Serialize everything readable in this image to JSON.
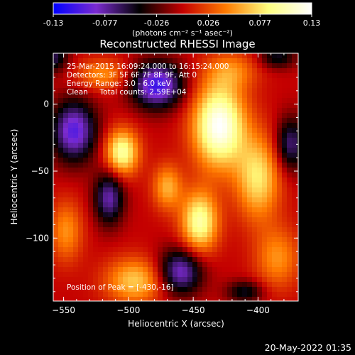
{
  "chart_data": {
    "type": "heatmap",
    "title": "Reconstructed RHESSI Image",
    "xlabel": "Heliocentric X (arcsec)",
    "ylabel": "Heliocentric Y (arcsec)",
    "xlim": [
      -558,
      -369
    ],
    "ylim": [
      -147,
      38
    ],
    "x_ticks": [
      -550,
      -500,
      -450,
      -400
    ],
    "y_ticks": [
      0,
      -50,
      -100
    ],
    "colorbar": {
      "min": -0.13,
      "max": 0.13,
      "ticks": [
        "-0.13",
        "-0.077",
        "-0.026",
        "0.026",
        "0.077",
        "0.13"
      ],
      "unit_label": "(photons cm⁻² s⁻¹ asec⁻²)",
      "colormap": [
        "#0000ff",
        "#7b2bd0",
        "#000000",
        "#c40000",
        "#ff7a00",
        "#ffff80",
        "#ffffff"
      ]
    },
    "annotations": [
      "25-Mar-2015 16:09:24.000 to 16:15:24.000",
      "Detectors: 3F 5F 6F 7F 8F 9F, Att 0",
      "Energy Range: 3.0 - 6.0 keV",
      "Clean     Total counts: 2.59E+04"
    ],
    "peak_label": "Position of Peak = [-430,-16]",
    "peak": {
      "x": -430,
      "y": -16,
      "value": 0.13
    },
    "blobs": [
      {
        "x": -430,
        "y": -16,
        "value": 0.13,
        "sx": 14,
        "sy": 22
      },
      {
        "x": -505,
        "y": -36,
        "value": 0.1,
        "sx": 9,
        "sy": 12
      },
      {
        "x": -445,
        "y": -88,
        "value": 0.1,
        "sx": 10,
        "sy": 16
      },
      {
        "x": -400,
        "y": -55,
        "value": 0.08,
        "sx": 12,
        "sy": 22
      },
      {
        "x": -470,
        "y": -62,
        "value": 0.06,
        "sx": 8,
        "sy": 12
      },
      {
        "x": -520,
        "y": 22,
        "value": 0.05,
        "sx": 14,
        "sy": 8
      },
      {
        "x": -495,
        "y": -132,
        "value": 0.07,
        "sx": 16,
        "sy": 12
      },
      {
        "x": -548,
        "y": -95,
        "value": 0.05,
        "sx": 9,
        "sy": 16
      },
      {
        "x": -385,
        "y": -115,
        "value": 0.05,
        "sx": 12,
        "sy": 16
      },
      {
        "x": -420,
        "y": 25,
        "value": 0.04,
        "sx": 14,
        "sy": 10
      },
      {
        "x": -542,
        "y": -20,
        "value": -0.1,
        "sx": 12,
        "sy": 16
      },
      {
        "x": -478,
        "y": 14,
        "value": -0.11,
        "sx": 14,
        "sy": 12
      },
      {
        "x": -515,
        "y": -70,
        "value": -0.08,
        "sx": 8,
        "sy": 14
      },
      {
        "x": -460,
        "y": -125,
        "value": -0.09,
        "sx": 12,
        "sy": 12
      },
      {
        "x": -375,
        "y": -30,
        "value": -0.07,
        "sx": 8,
        "sy": 14
      },
      {
        "x": -558,
        "y": 35,
        "value": -0.06,
        "sx": 8,
        "sy": 8
      },
      {
        "x": -410,
        "y": -140,
        "value": -0.05,
        "sx": 10,
        "sy": 6
      },
      {
        "x": -385,
        "y": 35,
        "value": -0.05,
        "sx": 10,
        "sy": 6
      }
    ]
  },
  "footer": {
    "timestamp": "20-May-2022 01:35"
  }
}
